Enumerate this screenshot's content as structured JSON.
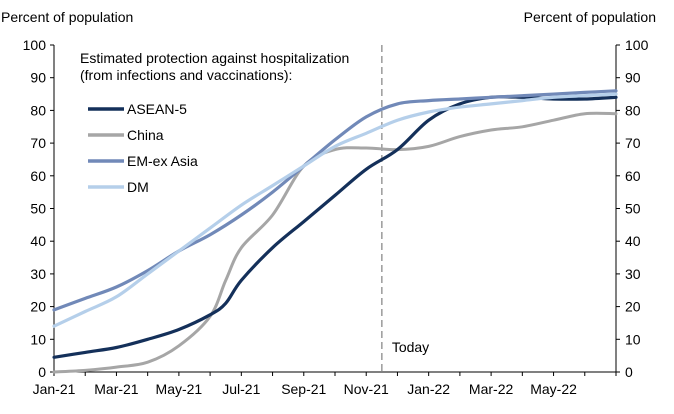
{
  "chart_data": {
    "type": "line",
    "left_axis_title": "Percent of population",
    "right_axis_title": "Percent of population",
    "legend_title": "Estimated protection against hospitalization",
    "legend_subtitle": "(from infections and vaccinations):",
    "annotation": "Today",
    "annotation_x": 10.5,
    "ylim": [
      0,
      100
    ],
    "yticks": [
      0,
      10,
      20,
      30,
      40,
      50,
      60,
      70,
      80,
      90,
      100
    ],
    "xlim": [
      0,
      18
    ],
    "xticks": [
      {
        "x": 0,
        "label": "Jan-21"
      },
      {
        "x": 2,
        "label": "Mar-21"
      },
      {
        "x": 4,
        "label": "May-21"
      },
      {
        "x": 6,
        "label": "Jul-21"
      },
      {
        "x": 8,
        "label": "Sep-21"
      },
      {
        "x": 10,
        "label": "Nov-21"
      },
      {
        "x": 12,
        "label": "Jan-22"
      },
      {
        "x": 14,
        "label": "Mar-22"
      },
      {
        "x": 16,
        "label": "May-22"
      }
    ],
    "series": [
      {
        "name": "ASEAN-5",
        "color": "#14305a",
        "width": 3.2,
        "points": [
          [
            0,
            4.5
          ],
          [
            1,
            6
          ],
          [
            2,
            7.5
          ],
          [
            3,
            10
          ],
          [
            4,
            13
          ],
          [
            5,
            17.5
          ],
          [
            5.5,
            21
          ],
          [
            6,
            28
          ],
          [
            7,
            38
          ],
          [
            8,
            46
          ],
          [
            9,
            54
          ],
          [
            10,
            62
          ],
          [
            11,
            68
          ],
          [
            12,
            77
          ],
          [
            13,
            82
          ],
          [
            14,
            84
          ],
          [
            15,
            84
          ],
          [
            16,
            83.5
          ],
          [
            17,
            83.5
          ],
          [
            18,
            84
          ]
        ]
      },
      {
        "name": "China",
        "color": "#a6a6a6",
        "width": 3.0,
        "points": [
          [
            0,
            0
          ],
          [
            1,
            0.5
          ],
          [
            2,
            1.5
          ],
          [
            3,
            3
          ],
          [
            4,
            8
          ],
          [
            5,
            17
          ],
          [
            5.5,
            28
          ],
          [
            6,
            38
          ],
          [
            7,
            48
          ],
          [
            8,
            63
          ],
          [
            9,
            68
          ],
          [
            10,
            68.5
          ],
          [
            11,
            68
          ],
          [
            12,
            69
          ],
          [
            13,
            72
          ],
          [
            14,
            74
          ],
          [
            15,
            75
          ],
          [
            16,
            77
          ],
          [
            17,
            79
          ],
          [
            18,
            79
          ]
        ]
      },
      {
        "name": "EM-ex Asia",
        "color": "#7189b8",
        "width": 3.2,
        "points": [
          [
            0,
            19
          ],
          [
            1,
            22.5
          ],
          [
            2,
            26
          ],
          [
            3,
            31
          ],
          [
            4,
            37
          ],
          [
            5,
            42
          ],
          [
            6,
            48
          ],
          [
            7,
            55
          ],
          [
            8,
            63
          ],
          [
            9,
            71
          ],
          [
            10,
            78
          ],
          [
            11,
            82
          ],
          [
            12,
            83
          ],
          [
            13,
            83.5
          ],
          [
            14,
            84
          ],
          [
            15,
            84.5
          ],
          [
            16,
            85
          ],
          [
            17,
            85.5
          ],
          [
            18,
            86
          ]
        ]
      },
      {
        "name": "DM",
        "color": "#b5cfea",
        "width": 3.2,
        "points": [
          [
            0,
            14
          ],
          [
            1,
            18.5
          ],
          [
            2,
            23
          ],
          [
            3,
            30
          ],
          [
            4,
            37
          ],
          [
            5,
            44
          ],
          [
            6,
            51
          ],
          [
            7,
            57
          ],
          [
            8,
            63
          ],
          [
            9,
            69
          ],
          [
            10,
            73
          ],
          [
            11,
            77
          ],
          [
            12,
            79.5
          ],
          [
            13,
            81
          ],
          [
            14,
            82
          ],
          [
            15,
            83
          ],
          [
            16,
            84
          ],
          [
            17,
            84.5
          ],
          [
            18,
            85
          ]
        ]
      }
    ]
  }
}
